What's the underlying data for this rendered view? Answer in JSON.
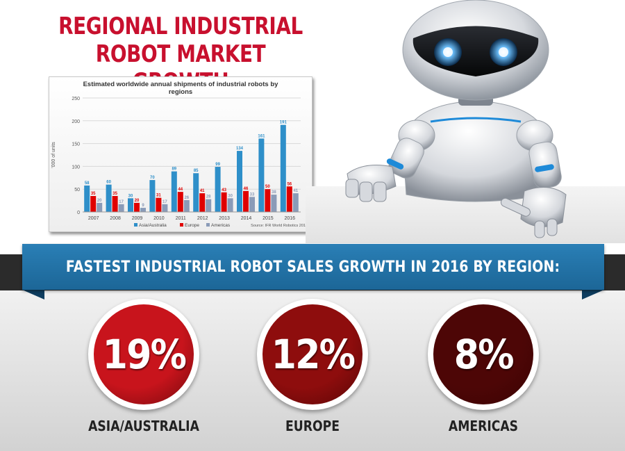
{
  "title_line1": "REGIONAL INDUSTRIAL",
  "title_line2": "ROBOT MARKET GROWTH",
  "chart_data": {
    "type": "bar",
    "title": "Estimated worldwide annual shipments of industrial robots by regions",
    "ylabel": "'000 of units",
    "xlabel": "",
    "ylim": [
      0,
      250
    ],
    "yticks": [
      0,
      50,
      100,
      150,
      200,
      250
    ],
    "grid": true,
    "legend_position": "bottom-left",
    "source": "Source: IFR World Robotics 2017",
    "categories": [
      "2007",
      "2008",
      "2009",
      "2010",
      "2011",
      "2012",
      "2013",
      "2014",
      "2015",
      "2016"
    ],
    "series": [
      {
        "name": "Asia/Australia",
        "color": "#2e8fc9",
        "values": [
          58,
          60,
          30,
          70,
          89,
          85,
          99,
          134,
          161,
          191
        ]
      },
      {
        "name": "Europe",
        "color": "#e00000",
        "values": [
          35,
          35,
          20,
          31,
          44,
          41,
          43,
          46,
          50,
          56
        ]
      },
      {
        "name": "Americas",
        "color": "#8a9bb8",
        "values": [
          20,
          17,
          9,
          17,
          26,
          28,
          30,
          33,
          38,
          41
        ]
      }
    ]
  },
  "banner_text": "FASTEST INDUSTRIAL ROBOT SALES GROWTH IN 2016 BY REGION:",
  "regions": [
    {
      "percent": "19%",
      "label": "ASIA/AUSTRALIA",
      "color": "#c8141c"
    },
    {
      "percent": "12%",
      "label": "EUROPE",
      "color": "#8e0d0d"
    },
    {
      "percent": "8%",
      "label": "AMERICAS",
      "color": "#4d0606"
    }
  ],
  "icons": {
    "robot": "robot-illustration"
  }
}
